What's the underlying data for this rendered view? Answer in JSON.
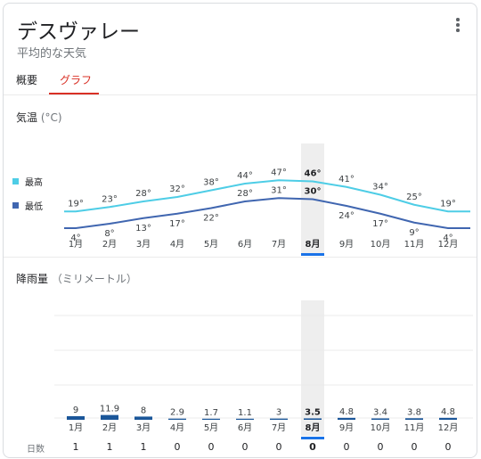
{
  "header": {
    "title": "デスヴァレー",
    "subtitle": "平均的な天気",
    "more_icon": "more-vert-icon"
  },
  "tabs": [
    {
      "label": "概要",
      "selected": false
    },
    {
      "label": "グラフ",
      "selected": true
    }
  ],
  "temperature": {
    "title": "気温",
    "unit": "(°C)",
    "legend": [
      {
        "label": "最高",
        "color": "#4ecde6"
      },
      {
        "label": "最低",
        "color": "#4066b0"
      }
    ]
  },
  "precip": {
    "title": "降雨量",
    "unit": "（ミリメートル）",
    "days_label": "日数"
  },
  "selected_month_index": 7,
  "colors": {
    "accent": "#1a73e8",
    "tab_active": "#d93025",
    "high_line": "#4ecde6",
    "low_line": "#4066b0",
    "precip_bar": "#1a5699"
  },
  "chart_data": [
    {
      "type": "line",
      "categories": [
        "1月",
        "2月",
        "3月",
        "4月",
        "5月",
        "6月",
        "7月",
        "8月",
        "9月",
        "10月",
        "11月",
        "12月"
      ],
      "series": [
        {
          "name": "最高",
          "values": [
            19,
            23,
            28,
            32,
            38,
            44,
            47,
            46,
            41,
            34,
            25,
            19
          ],
          "labels": [
            "19°",
            "23°",
            "28°",
            "32°",
            "38°",
            "44°",
            "47°",
            "46°",
            "41°",
            "34°",
            "25°",
            "19°"
          ]
        },
        {
          "name": "最低",
          "values": [
            4,
            8,
            13,
            17,
            22,
            28,
            31,
            30,
            24,
            17,
            9,
            4
          ],
          "labels": [
            "4°",
            "8°",
            "13°",
            "17°",
            "22°",
            "28°",
            "31°",
            "30°",
            "24°",
            "17°",
            "9°",
            "4°"
          ]
        }
      ]
    },
    {
      "type": "bar",
      "categories": [
        "1月",
        "2月",
        "3月",
        "4月",
        "5月",
        "6月",
        "7月",
        "8月",
        "9月",
        "10月",
        "11月",
        "12月"
      ],
      "values": [
        9,
        11.9,
        8,
        2.9,
        1.7,
        1.1,
        3,
        3.5,
        4.8,
        3.4,
        3.8,
        4.8
      ],
      "labels": [
        "9",
        "11.9",
        "8",
        "2.9",
        "1.7",
        "1.1",
        "3",
        "3.5",
        "4.8",
        "3.4",
        "3.8",
        "4.8"
      ],
      "days": [
        "1",
        "1",
        "1",
        "0",
        "0",
        "0",
        "0",
        "0",
        "0",
        "0",
        "0",
        "0"
      ]
    }
  ]
}
